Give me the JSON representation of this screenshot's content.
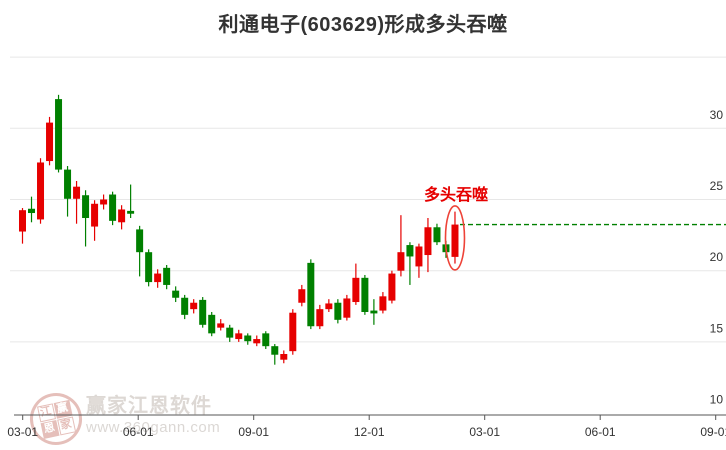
{
  "title": "利通电子(603629)形成多头吞噬",
  "annotation": {
    "label": "多头吞噬",
    "ellipse_center_price": 22.3,
    "price_line": 23.24
  },
  "watermark": {
    "brand": "赢家江恩软件",
    "url": "www.360gann.com",
    "seal_chars": [
      "江",
      "赢",
      "恩",
      "家"
    ]
  },
  "colors": {
    "up": "#e60000",
    "down": "#008000",
    "dashed_line": "#008000",
    "annotation_red": "#e60000",
    "ellipse": "#ee4338",
    "grid": "#e7e7e7",
    "axis": "#555555",
    "tick_label": "#333333",
    "title": "#333333"
  },
  "chart_data": {
    "type": "candlestick",
    "title": "利通电子(603629)形成多头吞噬",
    "xlabel": "",
    "ylabel": "",
    "x_ticks": [
      "03-01",
      "06-01",
      "09-01",
      "12-01",
      "03-01",
      "06-01",
      "09-01"
    ],
    "y_ticks": [
      30,
      25,
      20,
      15,
      10
    ],
    "ylim": [
      10,
      35
    ],
    "grid": true,
    "legend": "none",
    "series_note": "weekly OHLC candles, up=red down=green (CN convention); values in CNY",
    "candles": [
      {
        "o": 22.75,
        "h": 24.4,
        "l": 21.9,
        "c": 24.25
      },
      {
        "o": 24.35,
        "h": 25.2,
        "l": 23.4,
        "c": 24.05
      },
      {
        "o": 23.6,
        "h": 27.9,
        "l": 23.3,
        "c": 27.6
      },
      {
        "o": 27.7,
        "h": 30.8,
        "l": 27.4,
        "c": 30.4
      },
      {
        "o": 32.05,
        "h": 32.35,
        "l": 26.9,
        "c": 27.1
      },
      {
        "o": 27.1,
        "h": 27.35,
        "l": 23.8,
        "c": 25.05
      },
      {
        "o": 25.05,
        "h": 26.3,
        "l": 23.3,
        "c": 25.9
      },
      {
        "o": 25.3,
        "h": 25.65,
        "l": 21.7,
        "c": 23.7
      },
      {
        "o": 23.1,
        "h": 24.95,
        "l": 22.1,
        "c": 24.7
      },
      {
        "o": 24.65,
        "h": 25.35,
        "l": 24.3,
        "c": 25.0
      },
      {
        "o": 25.35,
        "h": 25.55,
        "l": 23.2,
        "c": 23.5
      },
      {
        "o": 23.4,
        "h": 24.6,
        "l": 22.9,
        "c": 24.3
      },
      {
        "o": 24.2,
        "h": 26.05,
        "l": 23.7,
        "c": 24.0
      },
      {
        "o": 22.9,
        "h": 23.15,
        "l": 19.6,
        "c": 21.3
      },
      {
        "o": 21.3,
        "h": 21.5,
        "l": 18.9,
        "c": 19.2
      },
      {
        "o": 19.2,
        "h": 20.1,
        "l": 18.8,
        "c": 19.8
      },
      {
        "o": 20.2,
        "h": 20.4,
        "l": 18.7,
        "c": 19.0
      },
      {
        "o": 18.6,
        "h": 18.9,
        "l": 17.8,
        "c": 18.1
      },
      {
        "o": 18.1,
        "h": 18.3,
        "l": 16.6,
        "c": 16.9
      },
      {
        "o": 17.3,
        "h": 18.0,
        "l": 17.0,
        "c": 17.75
      },
      {
        "o": 17.95,
        "h": 18.15,
        "l": 16.0,
        "c": 16.2
      },
      {
        "o": 16.9,
        "h": 17.1,
        "l": 15.4,
        "c": 15.6
      },
      {
        "o": 16.0,
        "h": 16.6,
        "l": 15.8,
        "c": 16.3
      },
      {
        "o": 16.0,
        "h": 16.2,
        "l": 15.0,
        "c": 15.3
      },
      {
        "o": 15.2,
        "h": 15.85,
        "l": 15.0,
        "c": 15.6
      },
      {
        "o": 15.45,
        "h": 15.6,
        "l": 14.8,
        "c": 15.05
      },
      {
        "o": 14.9,
        "h": 15.45,
        "l": 14.7,
        "c": 15.2
      },
      {
        "o": 15.6,
        "h": 15.75,
        "l": 14.5,
        "c": 14.7
      },
      {
        "o": 14.7,
        "h": 14.85,
        "l": 13.4,
        "c": 14.1
      },
      {
        "o": 13.75,
        "h": 14.4,
        "l": 13.5,
        "c": 14.15
      },
      {
        "o": 14.35,
        "h": 17.3,
        "l": 14.1,
        "c": 17.05
      },
      {
        "o": 17.75,
        "h": 19.0,
        "l": 17.5,
        "c": 18.7
      },
      {
        "o": 20.55,
        "h": 20.8,
        "l": 15.9,
        "c": 16.1
      },
      {
        "o": 16.1,
        "h": 17.6,
        "l": 15.9,
        "c": 17.3
      },
      {
        "o": 17.3,
        "h": 18.0,
        "l": 17.1,
        "c": 17.7
      },
      {
        "o": 17.75,
        "h": 18.0,
        "l": 16.3,
        "c": 16.55
      },
      {
        "o": 16.7,
        "h": 18.3,
        "l": 16.5,
        "c": 18.05
      },
      {
        "o": 17.8,
        "h": 20.5,
        "l": 17.6,
        "c": 19.5
      },
      {
        "o": 19.5,
        "h": 19.7,
        "l": 16.9,
        "c": 17.1
      },
      {
        "o": 17.2,
        "h": 18.0,
        "l": 16.2,
        "c": 17.0
      },
      {
        "o": 17.2,
        "h": 18.5,
        "l": 17.0,
        "c": 18.2
      },
      {
        "o": 17.9,
        "h": 20.0,
        "l": 17.7,
        "c": 19.8
      },
      {
        "o": 20.0,
        "h": 23.9,
        "l": 19.6,
        "c": 21.3
      },
      {
        "o": 21.8,
        "h": 22.0,
        "l": 19.0,
        "c": 21.0
      },
      {
        "o": 20.3,
        "h": 21.9,
        "l": 19.5,
        "c": 21.7
      },
      {
        "o": 21.1,
        "h": 23.7,
        "l": 19.9,
        "c": 23.05
      },
      {
        "o": 23.05,
        "h": 23.3,
        "l": 21.8,
        "c": 22.0
      },
      {
        "o": 21.85,
        "h": 22.1,
        "l": 20.9,
        "c": 21.3
      },
      {
        "o": 20.97,
        "h": 24.15,
        "l": 20.5,
        "c": 23.24
      }
    ]
  }
}
